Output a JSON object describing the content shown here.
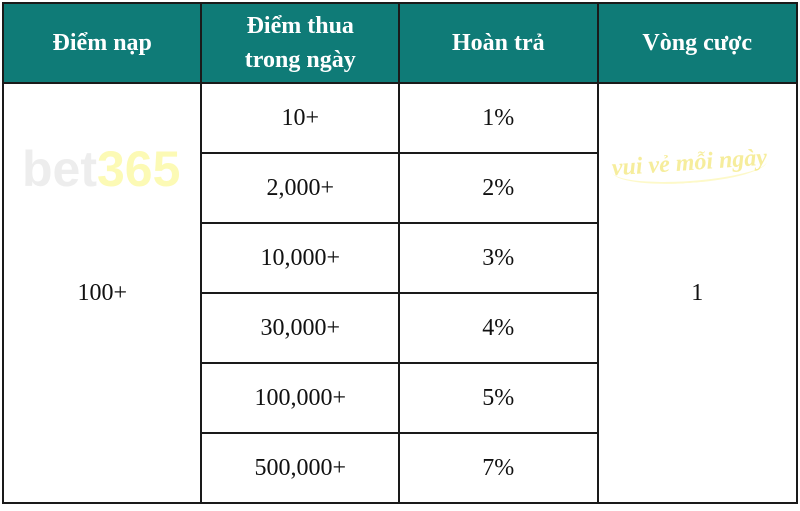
{
  "headers": [
    "Điểm nạp",
    "Điểm thua\ntrong ngày",
    "Hoàn trả",
    "Vòng cược"
  ],
  "headers_lines": {
    "col2_line1": "Điểm thua",
    "col2_line2": "trong ngày"
  },
  "deposit": "100+",
  "wager_rounds": "1",
  "rows": [
    {
      "loss": "10+",
      "refund": "1%"
    },
    {
      "loss": "2,000+",
      "refund": "2%"
    },
    {
      "loss": "10,000+",
      "refund": "3%"
    },
    {
      "loss": "30,000+",
      "refund": "4%"
    },
    {
      "loss": "100,000+",
      "refund": "5%"
    },
    {
      "loss": "500,000+",
      "refund": "7%"
    }
  ],
  "watermark": {
    "brand": "bet",
    "number": "365",
    "slogan": "vui vẻ mỗi ngày"
  },
  "colors": {
    "header_bg": "#0f7b77",
    "header_text": "#ffffff"
  }
}
